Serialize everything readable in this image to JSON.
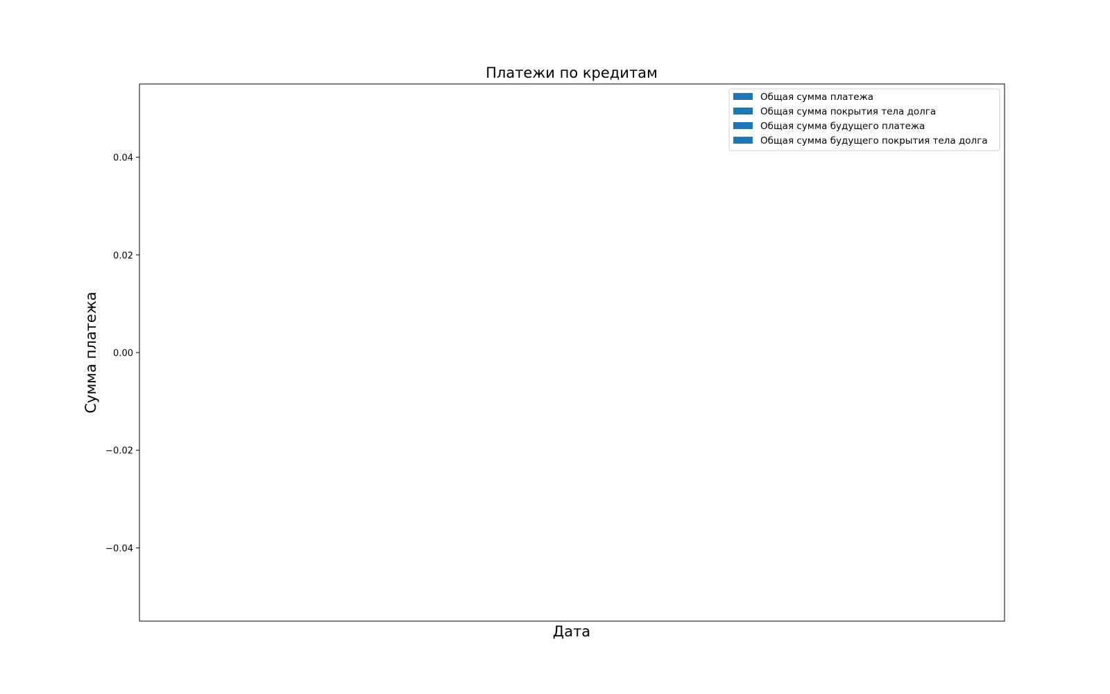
{
  "chart_data": {
    "type": "bar",
    "title": "Платежи по кредитам",
    "xlabel": "Дата",
    "ylabel": "Сумма платежа",
    "ylim": [
      -0.055,
      0.055
    ],
    "yticks": [
      {
        "value": 0.04,
        "label": "0.04"
      },
      {
        "value": 0.02,
        "label": "0.02"
      },
      {
        "value": 0.0,
        "label": "0.00"
      },
      {
        "value": -0.02,
        "label": "−0.02"
      },
      {
        "value": -0.04,
        "label": "−0.04"
      }
    ],
    "categories": [],
    "grid": false,
    "legend_position": "top-right",
    "series": [
      {
        "name": "Общая сумма платежа",
        "color": "#1f77b4",
        "values": []
      },
      {
        "name": "Общая сумма покрытия тела долга",
        "color": "#1f77b4",
        "values": []
      },
      {
        "name": "Общая сумма будущего платежа",
        "color": "#1f77b4",
        "values": []
      },
      {
        "name": "Общая сумма будущего покрытия тела долга",
        "color": "#1f77b4",
        "values": []
      }
    ]
  }
}
